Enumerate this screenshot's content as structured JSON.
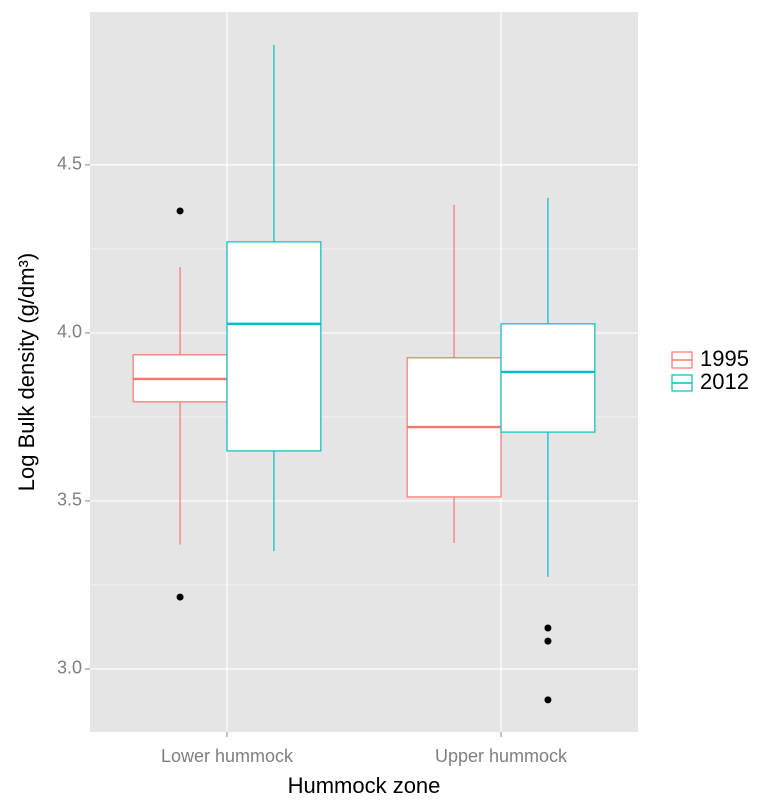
{
  "chart_data": {
    "type": "boxplot",
    "x_label": "Hummock zone",
    "y_label": "Log Bulk density (g/dm³)",
    "categories": [
      "Lower hummock",
      "Upper hummock"
    ],
    "series": [
      {
        "name": "1995",
        "color": "#F8766D",
        "boxes": [
          {
            "min": 3.37,
            "q1": 3.795,
            "median": 3.863,
            "q3": 3.935,
            "max": 4.196,
            "outliers": [
              4.363,
              3.214
            ]
          },
          {
            "min": 3.375,
            "q1": 3.512,
            "median": 3.72,
            "q3": 3.926,
            "max": 4.381,
            "outliers": []
          }
        ]
      },
      {
        "name": "2012",
        "color": "#00BFC4",
        "boxes": [
          {
            "min": 3.351,
            "q1": 3.649,
            "median": 4.027,
            "q3": 4.271,
            "max": 4.857,
            "outliers": []
          },
          {
            "min": 3.274,
            "q1": 3.705,
            "median": 3.884,
            "q3": 4.027,
            "max": 4.402,
            "outliers": [
              3.122,
              3.083,
              2.908
            ]
          }
        ]
      }
    ],
    "ylim": [
      2.8125,
      4.955
    ],
    "yticks": [
      {
        "value": 3,
        "label": "3.0"
      },
      3.5,
      {
        "value": 4,
        "label": "4.0"
      },
      4.5
    ],
    "grid": true
  }
}
